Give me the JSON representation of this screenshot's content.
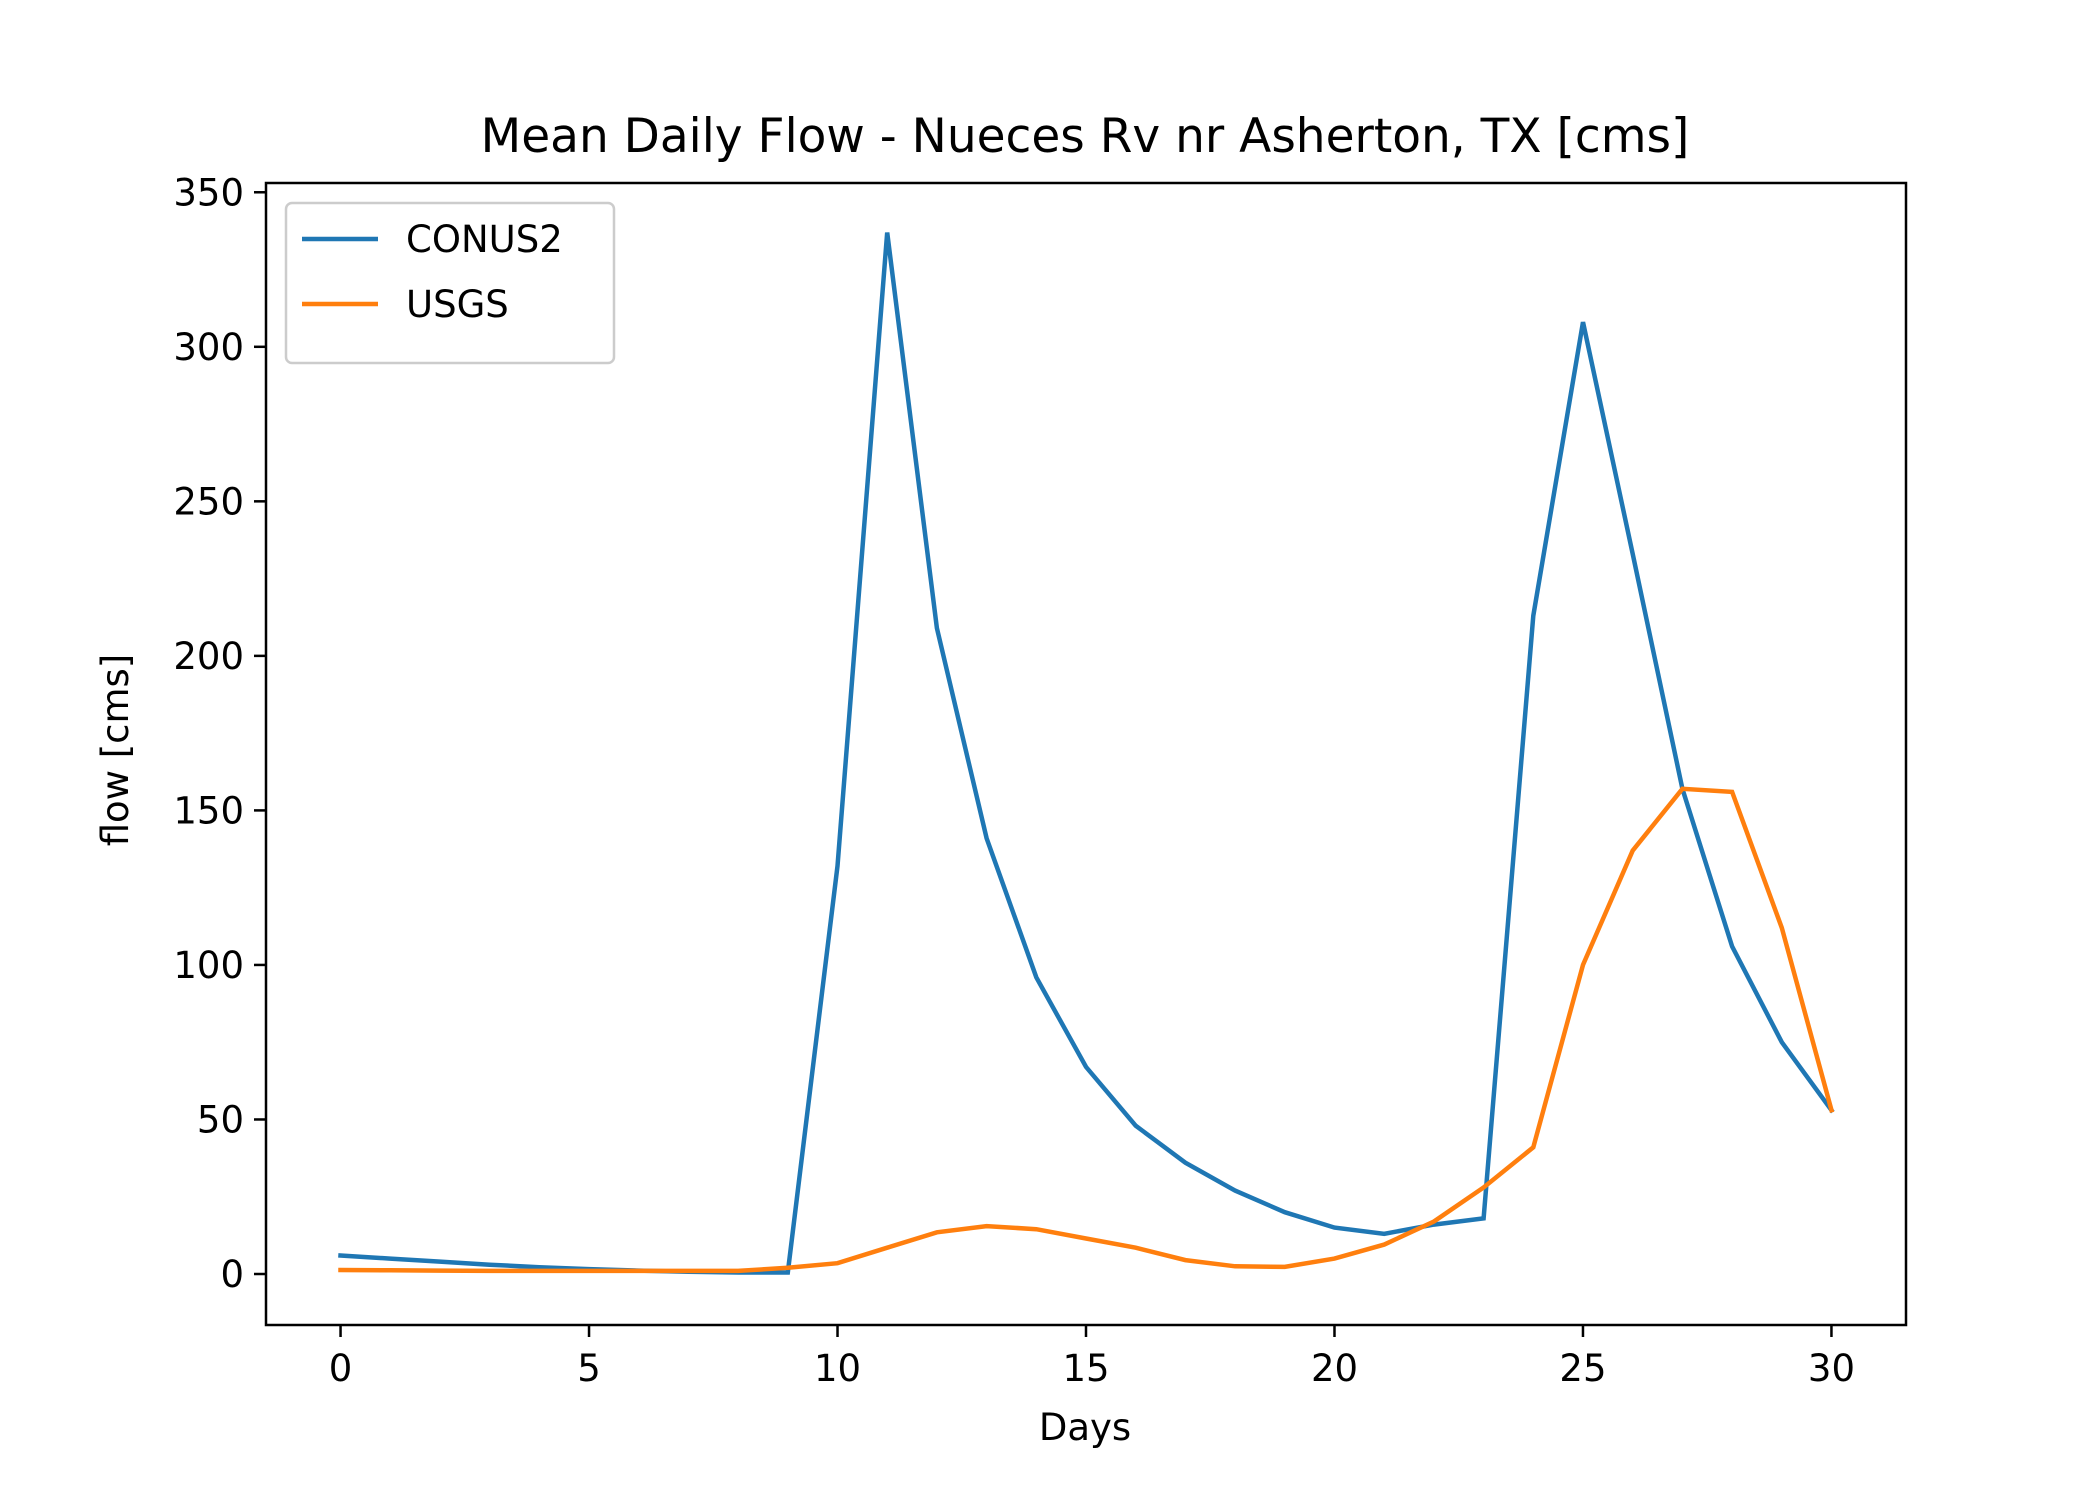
{
  "chart_data": {
    "type": "line",
    "title": "Mean Daily Flow - Nueces Rv nr Asherton, TX [cms]",
    "xlabel": "Days",
    "ylabel": "flow [cms]",
    "xlim": [
      -1.5,
      31.5
    ],
    "ylim": [
      -16.5,
      353
    ],
    "x_ticks": [
      0,
      5,
      10,
      15,
      20,
      25,
      30
    ],
    "y_ticks": [
      0,
      50,
      100,
      150,
      200,
      250,
      300,
      350
    ],
    "grid": false,
    "legend_position": "top-left",
    "x": [
      0,
      1,
      2,
      3,
      4,
      5,
      6,
      7,
      8,
      9,
      10,
      11,
      12,
      13,
      14,
      15,
      16,
      17,
      18,
      19,
      20,
      21,
      22,
      23,
      24,
      25,
      26,
      27,
      28,
      29,
      30
    ],
    "series": [
      {
        "name": "CONUS2",
        "color": "#1f77b4",
        "values": [
          6,
          5,
          4,
          3,
          2.2,
          1.6,
          1.1,
          0.7,
          0.5,
          0.5,
          132,
          337,
          209,
          141,
          96,
          67,
          48,
          36,
          27,
          20,
          15,
          13,
          16,
          18,
          213,
          308,
          233,
          157,
          106,
          75,
          53
        ]
      },
      {
        "name": "USGS",
        "color": "#ff7f0e",
        "values": [
          1.3,
          1.2,
          1.1,
          1.0,
          1.0,
          1.0,
          1.0,
          1.0,
          1.0,
          2.0,
          3.5,
          8.5,
          13.5,
          15.5,
          14.5,
          11.5,
          8.5,
          4.5,
          2.5,
          2.3,
          5.0,
          9.5,
          17,
          28,
          41,
          100,
          137,
          157,
          156,
          112,
          53
        ]
      }
    ]
  }
}
